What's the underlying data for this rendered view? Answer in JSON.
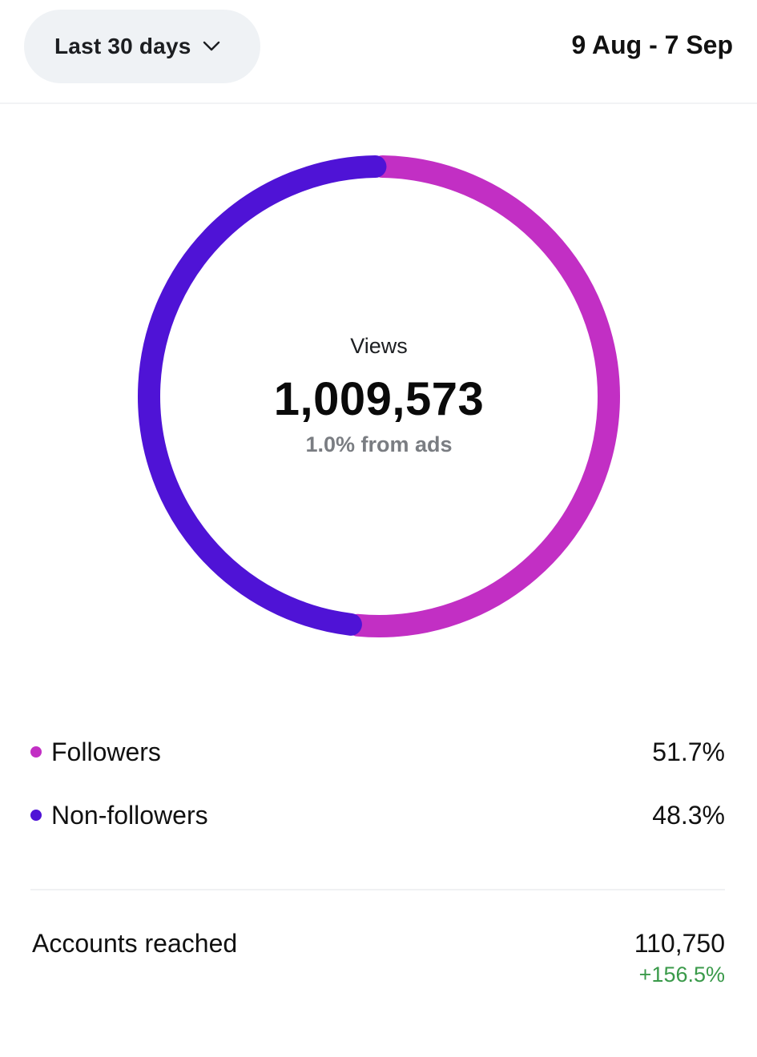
{
  "header": {
    "range_label": "Last 30 days",
    "date_range": "9 Aug - 7 Sep"
  },
  "summary": {
    "label": "Views",
    "value": "1,009,573",
    "sub": "1.0% from ads"
  },
  "colors": {
    "followers": "#c22fc4",
    "non_followers": "#4f13d6",
    "positive": "#3a9a4a"
  },
  "chart_data": {
    "type": "pie",
    "categories": [
      "Followers",
      "Non-followers"
    ],
    "values": [
      51.7,
      48.3
    ],
    "title": ""
  },
  "legend": [
    {
      "label": "Followers",
      "value": "51.7%"
    },
    {
      "label": "Non-followers",
      "value": "48.3%"
    }
  ],
  "accounts_reached": {
    "label": "Accounts reached",
    "value": "110,750",
    "change": "+156.5%"
  }
}
